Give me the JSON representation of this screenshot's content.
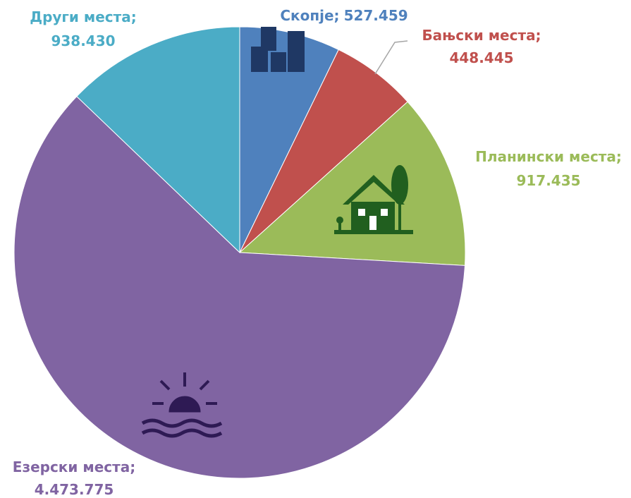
{
  "chart_data": {
    "type": "pie",
    "categories": [
      "Скопје;",
      "Бањски места;",
      "Планински места;",
      "Езерски места;",
      "Други места;"
    ],
    "values": [
      527459,
      448445,
      917435,
      4473775,
      938430
    ],
    "value_labels": [
      "527.459",
      "448.445",
      "917.435",
      "4.473.775",
      "938.430"
    ],
    "colors": [
      "#4f81bd",
      "#c0504d",
      "#9bbb59",
      "#8064a2",
      "#4bacc6"
    ],
    "label_colors": [
      "#4f81bd",
      "#c0504d",
      "#9bbb59",
      "#8064a2",
      "#4bacc6"
    ]
  }
}
